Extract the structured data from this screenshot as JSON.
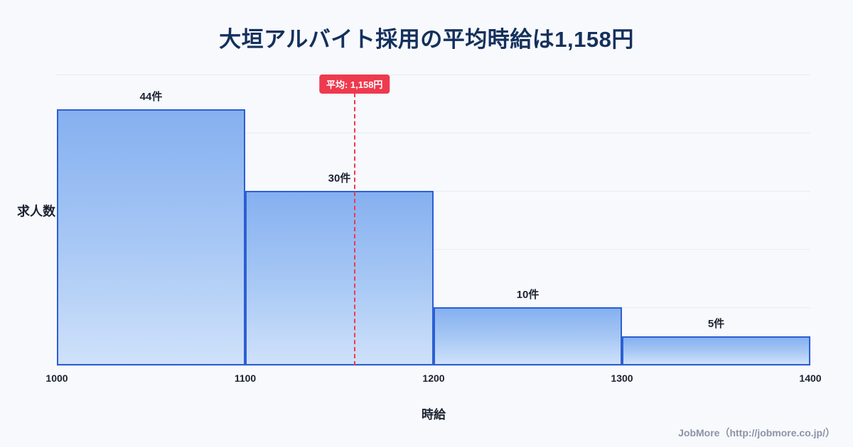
{
  "title": "大垣アルバイト採用の平均時給は1,158円",
  "footer": "JobMore（http://jobmore.co.jp/）",
  "chart_data": {
    "type": "bar",
    "title": "大垣アルバイト採用の平均時給は1,158円",
    "xlabel": "時給",
    "ylabel": "求人数",
    "categories": [
      "1000-1100",
      "1100-1200",
      "1200-1300",
      "1300-1400"
    ],
    "values": [
      44,
      30,
      10,
      5
    ],
    "bar_labels": [
      "44件",
      "30件",
      "10件",
      "5件"
    ],
    "x_ticks": [
      "1000",
      "1100",
      "1200",
      "1300",
      "1400"
    ],
    "x_range": [
      1000,
      1400
    ],
    "ylim": [
      0,
      50
    ],
    "grid": true,
    "legend": "none",
    "average": {
      "value": 1158,
      "label": "平均: 1,158円"
    },
    "colors": {
      "bar_fill_top": "#85b0f0",
      "bar_fill_bottom": "#cfe1fa",
      "bar_border": "#2c5fd2",
      "average_line": "#ee3a4e",
      "title": "#14305c",
      "background": "#f7f9fd"
    }
  }
}
